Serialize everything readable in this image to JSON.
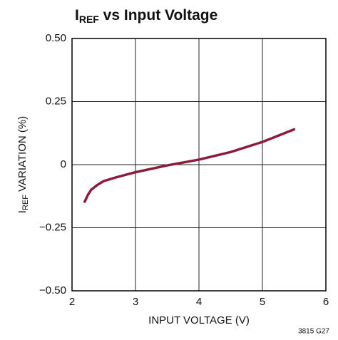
{
  "chart_data": {
    "type": "line",
    "title": {
      "main": "I",
      "sub": "REF",
      "rest": " vs Input Voltage"
    },
    "ylabel": {
      "main": "I",
      "sub": "REF",
      "rest": " VARIATION (%)"
    },
    "xlabel": "INPUT VOLTAGE (V)",
    "note": "3815 G27",
    "x": [
      2.2,
      2.25,
      2.3,
      2.4,
      2.5,
      2.7,
      3.0,
      3.5,
      4.0,
      4.5,
      5.0,
      5.5
    ],
    "series": [
      {
        "name": "IREF",
        "color": "#8c1c3c",
        "values": [
          -0.147,
          -0.12,
          -0.1,
          -0.08,
          -0.065,
          -0.05,
          -0.03,
          -0.003,
          0.02,
          0.05,
          0.09,
          0.14
        ]
      }
    ],
    "xlim": [
      2,
      6
    ],
    "xticks": [
      2,
      3,
      4,
      5,
      6
    ],
    "ylim": [
      -0.5,
      0.5
    ],
    "yticks": [
      {
        "value": -0.5,
        "label": "−0.50"
      },
      {
        "value": -0.25,
        "label": "−0.25"
      },
      0,
      {
        "value": 0.25,
        "label": "0.25"
      },
      {
        "value": 0.5,
        "label": "0.50"
      }
    ],
    "grid": true
  }
}
